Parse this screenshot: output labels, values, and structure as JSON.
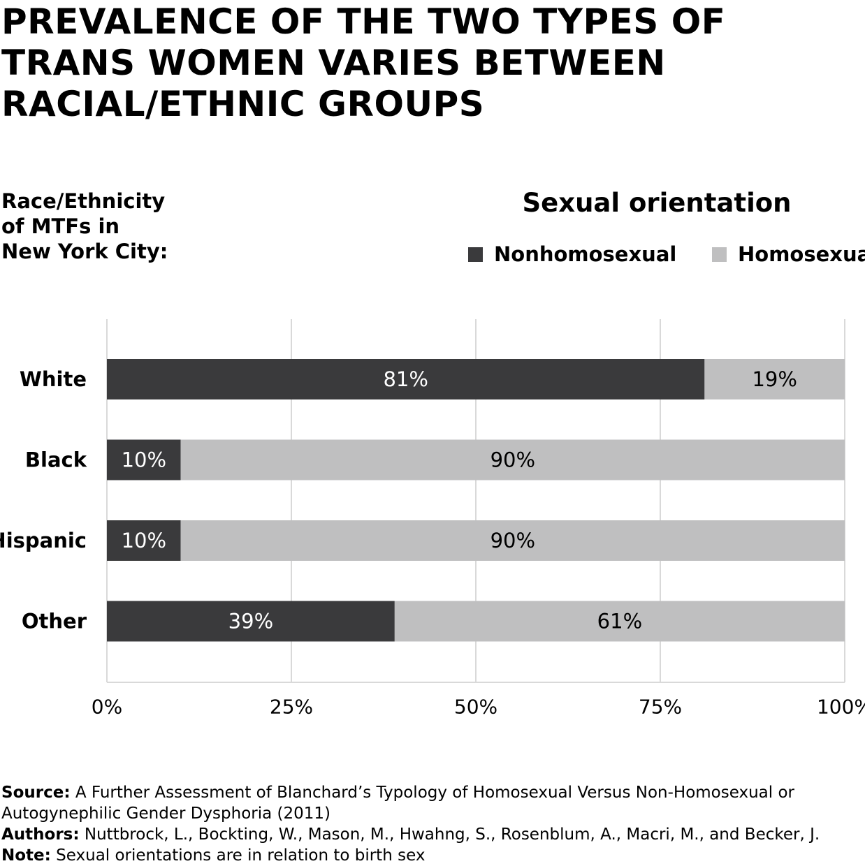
{
  "title": "PREVALENCE OF THE TWO TYPES OF TRANS WOMEN VARIES BETWEEN RACIAL/ETHNIC GROUPS",
  "chart_data": {
    "type": "bar",
    "orientation": "horizontal",
    "stacked": true,
    "ylabel": "Race/Ethnicity\nof MTFs in\nNew York City:",
    "xlabel": "",
    "legend_title": "Sexual orientation",
    "legend_position": "top-right",
    "categories": [
      "White",
      "Black",
      "Hispanic",
      "Other"
    ],
    "series": [
      {
        "name": "Nonhomosexual",
        "color": "#3a3a3c",
        "values": [
          81,
          10,
          10,
          39
        ],
        "labels": [
          "81%",
          "10%",
          "10%",
          "39%"
        ]
      },
      {
        "name": "Homosexual",
        "color": "#bfbfc0",
        "values": [
          19,
          90,
          90,
          61
        ],
        "labels": [
          "19%",
          "90%",
          "90%",
          "61%"
        ]
      }
    ],
    "xlim": [
      0,
      100
    ],
    "xticks": [
      0,
      25,
      50,
      75,
      100
    ],
    "xtick_labels": [
      "0%",
      "25%",
      "50%",
      "75%",
      "100%"
    ],
    "grid": true
  },
  "footer": {
    "source_label": "Source:",
    "source_text": "A Further Assessment of Blanchard’s Typology of Homosexual Versus Non-Homosexual or Autogynephilic Gender Dysphoria (2011)",
    "authors_label": "Authors:",
    "authors_text": "Nuttbrock, L., Bockting, W., Mason, M., Hwahng, S., Rosenblum, A., Macri, M., and Becker, J.",
    "note_label": "Note:",
    "note_text": "Sexual orientations are in relation to birth sex"
  }
}
